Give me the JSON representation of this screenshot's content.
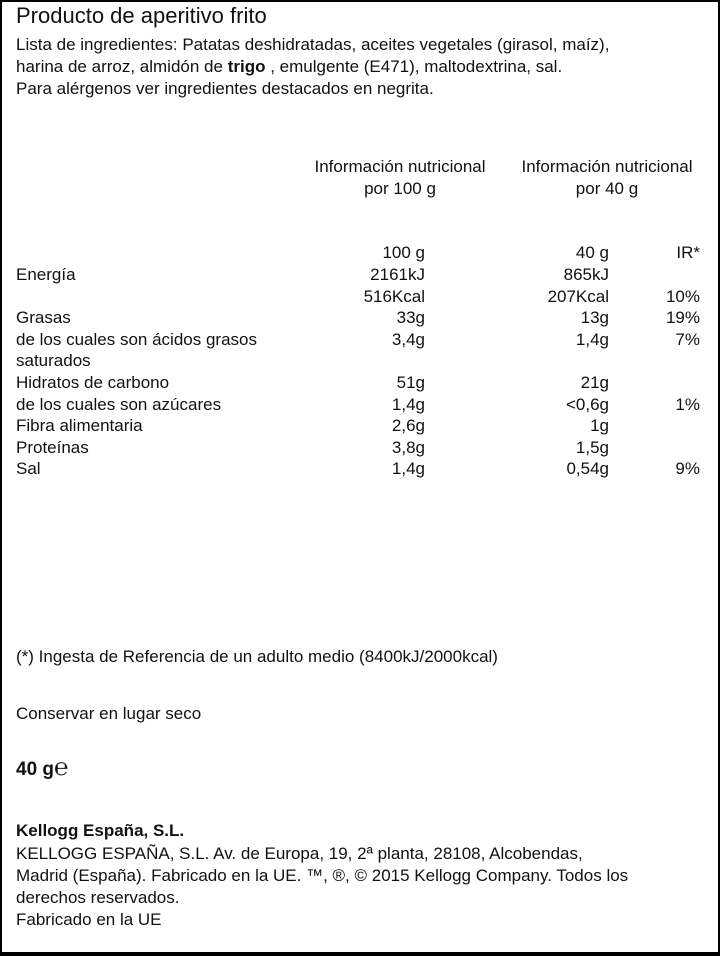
{
  "title": "Producto de aperitivo frito",
  "ingredients": {
    "line1": "Lista de ingredientes: Patatas deshidratadas, aceites vegetales (girasol, maíz),",
    "line2_before": "harina de arroz, almidón de ",
    "line2_bold": "trigo",
    "line2_after": " , emulgente (E471), maltodextrina, sal.",
    "line3": "Para alérgenos ver ingredientes destacados en negrita."
  },
  "table": {
    "col1_header": [
      "Información nutricional",
      "por 100 g"
    ],
    "col2_header": [
      "Información nutricional",
      "por 40 g"
    ],
    "units": {
      "col1": "100 g",
      "col2": "40 g",
      "col3": "IR*"
    },
    "rows": [
      {
        "label": "Energía",
        "v100": "2161kJ",
        "v40": "865kJ",
        "ir": ""
      },
      {
        "label": "",
        "v100": "516Kcal",
        "v40": "207Kcal",
        "ir": "10%"
      },
      {
        "label": "Grasas",
        "v100": "33g",
        "v40": "13g",
        "ir": "19%"
      },
      {
        "label": "de los cuales son ácidos grasos",
        "v100": "3,4g",
        "v40": "1,4g",
        "ir": "7%"
      },
      {
        "label": "saturados",
        "v100": "",
        "v40": "",
        "ir": ""
      },
      {
        "label": "Hidratos  de  carbono",
        "v100": "51g",
        "v40": "21g",
        "ir": ""
      },
      {
        "label": "de los cuales son azúcares",
        "v100": "1,4g",
        "v40": "<0,6g",
        "ir": "1%"
      },
      {
        "label": "Fibra  alimentaria",
        "v100": "2,6g",
        "v40": "1g",
        "ir": ""
      },
      {
        "label": "Proteínas",
        "v100": "3,8g",
        "v40": "1,5g",
        "ir": ""
      },
      {
        "label": "Sal",
        "v100": "1,4g",
        "v40": "0,54g",
        "ir": "9%"
      }
    ]
  },
  "footnote": "(*) Ingesta de Referencia de un adulto medio (8400kJ/2000kcal)",
  "storage": "Conservar en lugar seco",
  "net_weight": "40 g",
  "estimated_mark": "℮",
  "company": {
    "name": "Kellogg España, S.L.",
    "address": [
      "KELLOGG ESPAÑA, S.L. Av. de Europa, 19, 2ª planta, 28108, Alcobendas,",
      "Madrid (España). Fabricado en la UE. ™, ®, © 2015 Kellogg Company. Todos los",
      "derechos reservados."
    ],
    "origin": "Fabricado en la UE"
  }
}
